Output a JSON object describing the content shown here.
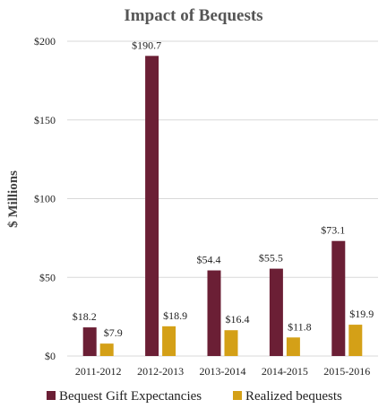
{
  "chart_data": {
    "type": "bar",
    "title": "Impact of Bequests",
    "xlabel": "",
    "ylabel": "$ Millions",
    "ylim": [
      0,
      200
    ],
    "yticks": [
      0,
      50,
      100,
      150,
      200
    ],
    "ytick_labels": [
      "$0",
      "$50",
      "$100",
      "$150",
      "$200"
    ],
    "categories": [
      "2011-2012",
      "2012-2013",
      "2013-2014",
      "2014-2015",
      "2015-2016"
    ],
    "series": [
      {
        "name": "Bequest Gift Expectancies",
        "color": "#6b1f35",
        "values": [
          18.2,
          190.7,
          54.4,
          55.5,
          73.1
        ],
        "labels": [
          "$18.2",
          "$190.7",
          "$54.4",
          "$55.5",
          "$73.1"
        ]
      },
      {
        "name": "Realized bequests",
        "color": "#d4a017",
        "values": [
          7.9,
          18.9,
          16.4,
          11.8,
          19.9
        ],
        "labels": [
          "$7.9",
          "$18.9",
          "$16.4",
          "$11.8",
          "$19.9"
        ]
      }
    ],
    "grid": true,
    "gridline_color": "#d9d9d9",
    "legend_position": "bottom"
  }
}
